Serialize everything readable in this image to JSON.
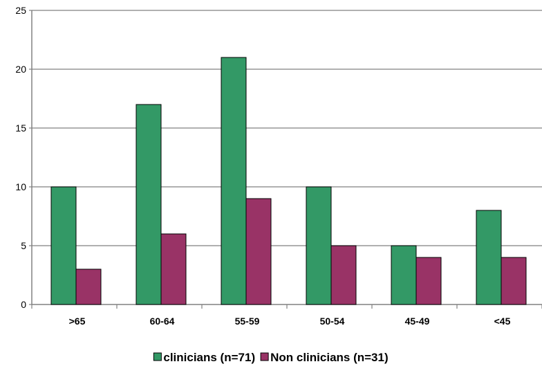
{
  "chart_data": {
    "type": "bar",
    "categories": [
      ">65",
      "60-64",
      "55-59",
      "50-54",
      "45-49",
      "<45"
    ],
    "series": [
      {
        "name": "clinicians (n=71)",
        "color": "#339966",
        "values": [
          10,
          17,
          21,
          10,
          5,
          8
        ]
      },
      {
        "name": "Non clinicians (n=31)",
        "color": "#993366",
        "values": [
          3,
          6,
          9,
          5,
          4,
          4
        ]
      }
    ],
    "ylim": [
      0,
      25
    ],
    "yticks": [
      "0",
      "5",
      "10",
      "15",
      "20",
      "25"
    ],
    "grid": true,
    "legend_position": "bottom"
  }
}
